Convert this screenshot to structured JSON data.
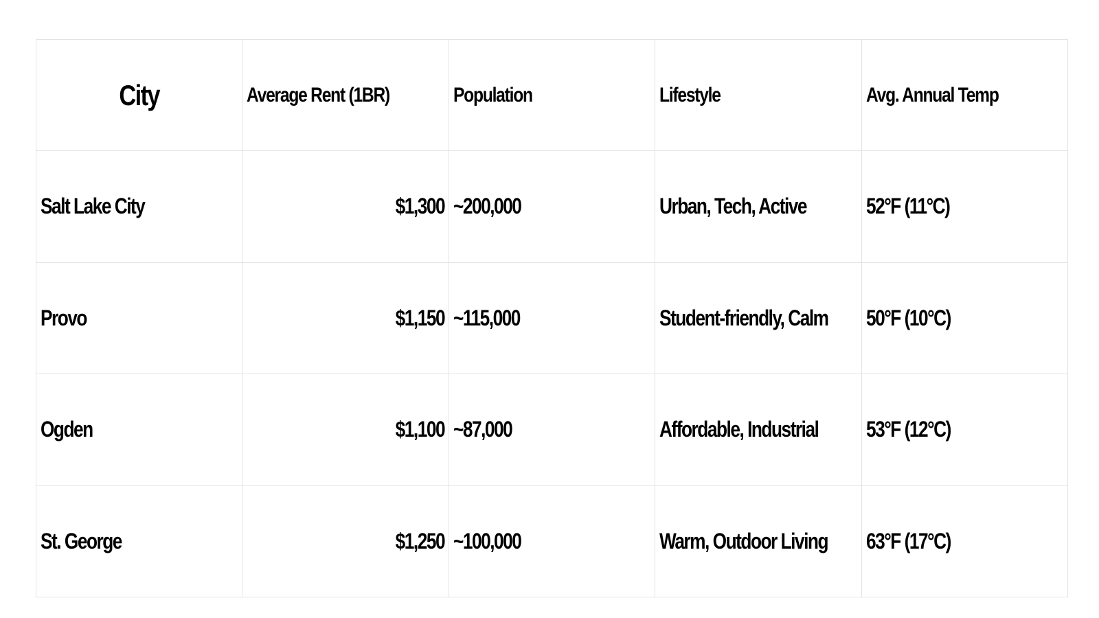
{
  "table": {
    "headers": [
      "City",
      "Average Rent (1BR)",
      "Population",
      "Lifestyle",
      "Avg. Annual Temp"
    ],
    "rows": [
      [
        "Salt Lake City",
        "$1,300",
        "~200,000",
        "Urban, Tech, Active",
        "52°F (11°C)"
      ],
      [
        "Provo",
        "$1,150",
        "~115,000",
        "Student-friendly, Calm",
        "50°F (10°C)"
      ],
      [
        "Ogden",
        "$1,100",
        "~87,000",
        "Affordable, Industrial",
        "53°F (12°C)"
      ],
      [
        "St. George",
        "$1,250",
        "~100,000",
        "Warm, Outdoor Living",
        "63°F (17°C)"
      ]
    ]
  }
}
